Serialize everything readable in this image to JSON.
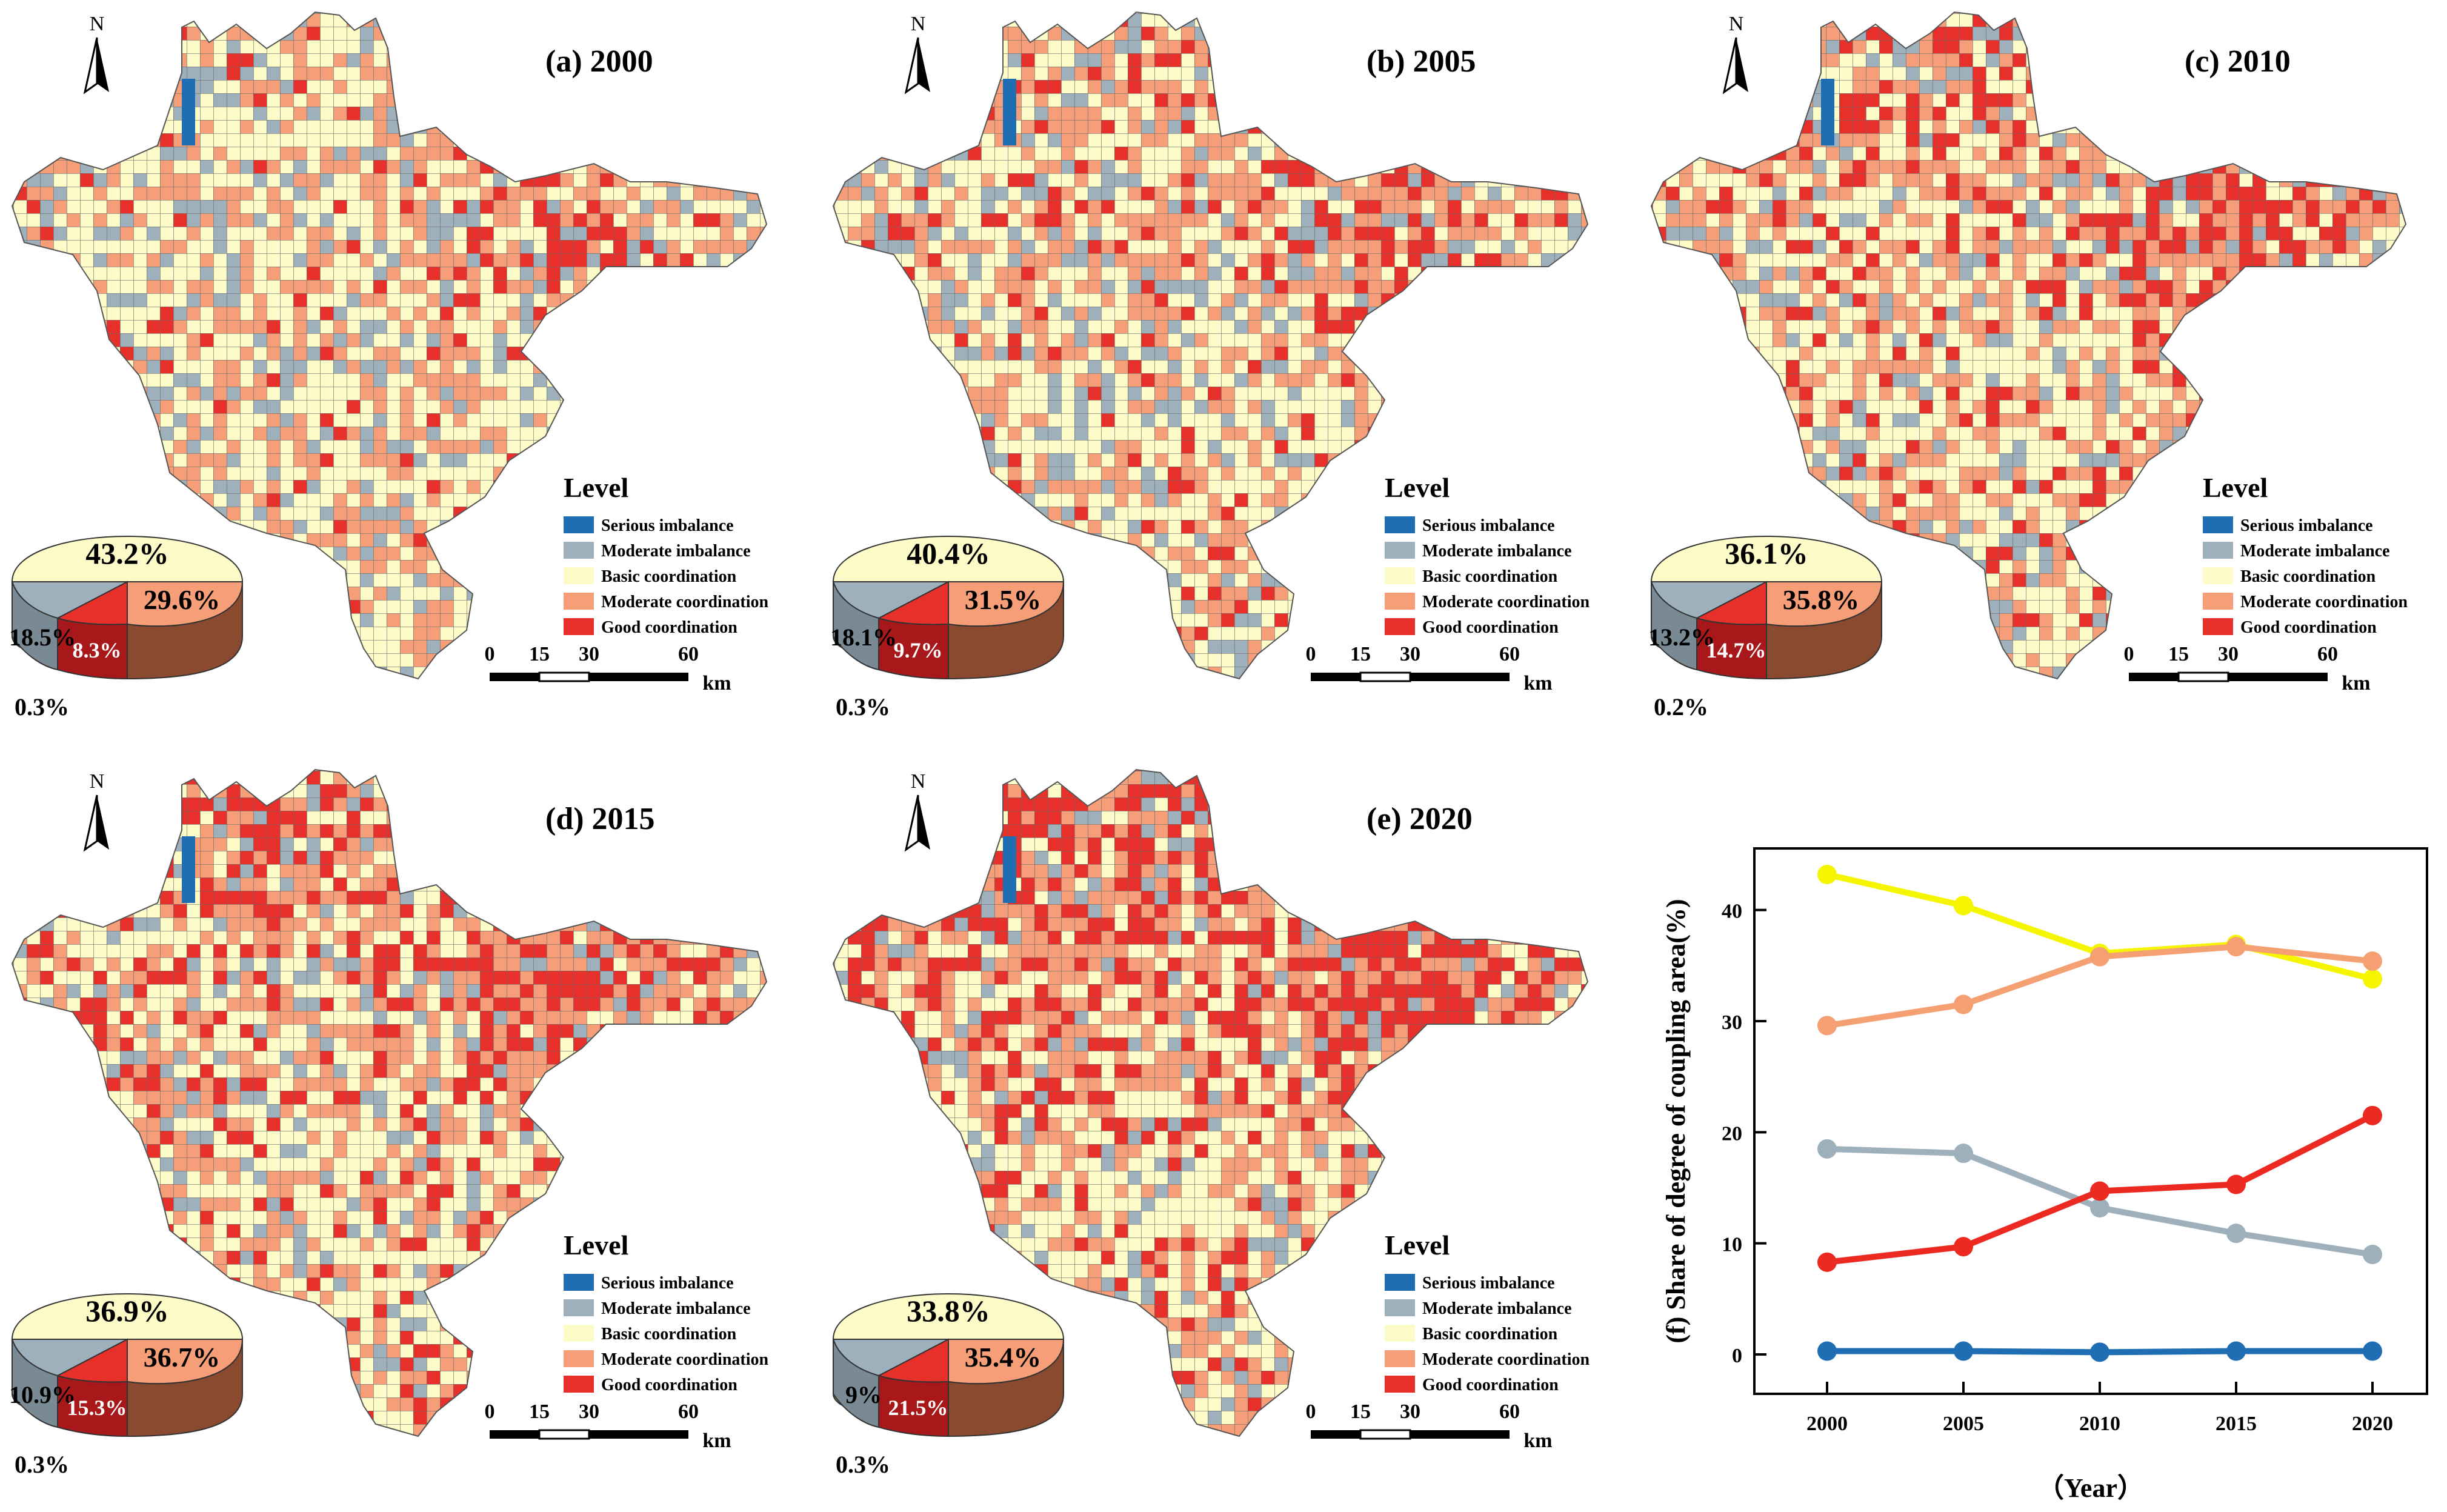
{
  "legend": {
    "title": "Level",
    "levels": [
      {
        "label": "Serious imbalance",
        "color": "#1f6eb4"
      },
      {
        "label": "Moderate imbalance",
        "color": "#9eb0bb"
      },
      {
        "label": "Basic coordination",
        "color": "#fdfbc8"
      },
      {
        "label": "Moderate coordination",
        "color": "#f59e77"
      },
      {
        "label": "Good coordination",
        "color": "#e8302b"
      }
    ]
  },
  "north_label": "N",
  "scalebar": {
    "ticks": [
      "0",
      "15",
      "30",
      "60"
    ],
    "unit": "km"
  },
  "panels": [
    {
      "title": "(a) 2000",
      "year": 2000,
      "pie": {
        "serious": "0.3%",
        "moderate_imbalance": "18.5%",
        "basic": "43.2%",
        "moderate_coord": "29.6%",
        "good": "8.3%"
      }
    },
    {
      "title": "(b) 2005",
      "year": 2005,
      "pie": {
        "serious": "0.3%",
        "moderate_imbalance": "18.1%",
        "basic": "40.4%",
        "moderate_coord": "31.5%",
        "good": "9.7%"
      }
    },
    {
      "title": "(c) 2010",
      "year": 2010,
      "pie": {
        "serious": "0.2%",
        "moderate_imbalance": "13.2%",
        "basic": "36.1%",
        "moderate_coord": "35.8%",
        "good": "14.7%"
      }
    },
    {
      "title": "(d) 2015",
      "year": 2015,
      "pie": {
        "serious": "0.3%",
        "moderate_imbalance": "10.9%",
        "basic": "36.9%",
        "moderate_coord": "36.7%",
        "good": "15.3%"
      }
    },
    {
      "title": "(e) 2020",
      "year": 2020,
      "pie": {
        "serious": "0.3%",
        "moderate_imbalance": "9%",
        "basic": "33.8%",
        "moderate_coord": "35.4%",
        "good": "21.5%"
      }
    }
  ],
  "chart_data": {
    "type": "line",
    "title": "",
    "ylabel": "(f) Share of degree of coupling  area(%)",
    "xlabel": "（Year）",
    "x": [
      2000,
      2005,
      2010,
      2015,
      2020
    ],
    "ylim": [
      -3,
      45
    ],
    "yticks": [
      0,
      10,
      20,
      30,
      40
    ],
    "series": [
      {
        "name": "Serious imbalance",
        "color": "#1f6eb4",
        "values": [
          0.3,
          0.3,
          0.2,
          0.3,
          0.3
        ]
      },
      {
        "name": "Moderate imbalance",
        "color": "#9eb0bb",
        "values": [
          18.5,
          18.1,
          13.2,
          10.9,
          9.0
        ]
      },
      {
        "name": "Basic coordination",
        "color": "#f5f500",
        "values": [
          43.2,
          40.4,
          36.1,
          36.9,
          33.8
        ]
      },
      {
        "name": "Moderate coordination",
        "color": "#f5a072",
        "values": [
          29.6,
          31.5,
          35.8,
          36.7,
          35.4
        ]
      },
      {
        "name": "Good coordination",
        "color": "#ec2a22",
        "values": [
          8.3,
          9.7,
          14.7,
          15.3,
          21.5
        ]
      }
    ]
  }
}
